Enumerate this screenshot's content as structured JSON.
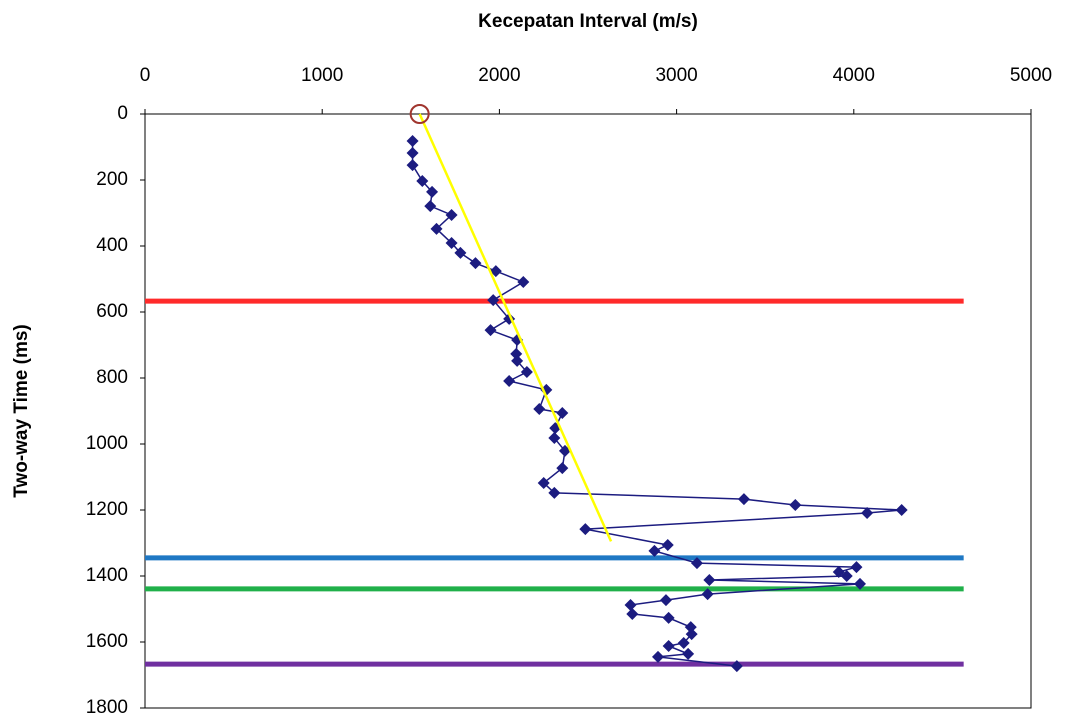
{
  "chart_data": {
    "type": "scatter",
    "x_label": "Kecepatan Interval (m/s)",
    "y_label": "Two-way Time (ms)",
    "xlim": [
      0,
      5000
    ],
    "xticks": [
      0,
      1000,
      2000,
      3000,
      4000,
      5000
    ],
    "ylim": [
      0,
      1800
    ],
    "yticks": [
      0,
      200,
      400,
      600,
      800,
      1000,
      1200,
      1400,
      1600,
      1800
    ],
    "y_inverted": true,
    "x_axis_position": "top",
    "series": [
      {
        "color": "#1c1c80",
        "marker": "diamond",
        "x": [
          1510,
          1510,
          1510,
          1565,
          1620,
          1610,
          1730,
          1645,
          1730,
          1780,
          1865,
          1980,
          2135,
          1965,
          2055,
          1950,
          2100,
          2095,
          2100,
          2155,
          2055,
          2265,
          2225,
          2355,
          2315,
          2310,
          2370,
          2355,
          2250,
          2310,
          3380,
          3670,
          4270,
          4075,
          2485,
          2950,
          2875,
          3115,
          4015,
          3915,
          3960,
          3185,
          4035,
          3175,
          2940,
          2740,
          2750,
          2955,
          3080,
          3085,
          3040,
          2955,
          3065,
          2895,
          3340
        ],
        "y": [
          82,
          118,
          155,
          203,
          236,
          279,
          306,
          348,
          391,
          421,
          452,
          476,
          509,
          564,
          621,
          655,
          685,
          727,
          748,
          782,
          809,
          836,
          894,
          906,
          952,
          982,
          1021,
          1073,
          1118,
          1148,
          1167,
          1185,
          1200,
          1209,
          1258,
          1306,
          1324,
          1361,
          1373,
          1388,
          1400,
          1412,
          1424,
          1455,
          1473,
          1488,
          1515,
          1527,
          1555,
          1576,
          1603,
          1612,
          1636,
          1645,
          1673
        ]
      }
    ],
    "trend_line": {
      "color": "#ffff00",
      "x": [
        1550,
        2630
      ],
      "y": [
        0,
        1295
      ]
    },
    "origin_marker": {
      "color": "#a0352e",
      "x": 1550,
      "y": 0
    },
    "horizons": [
      {
        "color": "#ff2a2a",
        "y": 567,
        "x": [
          0,
          4620
        ]
      },
      {
        "color": "#1f78c4",
        "y": 1345,
        "x": [
          0,
          4620
        ]
      },
      {
        "color": "#20b04a",
        "y": 1439,
        "x": [
          0,
          4620
        ]
      },
      {
        "color": "#7030a0",
        "y": 1667,
        "x": [
          0,
          4620
        ]
      }
    ]
  }
}
